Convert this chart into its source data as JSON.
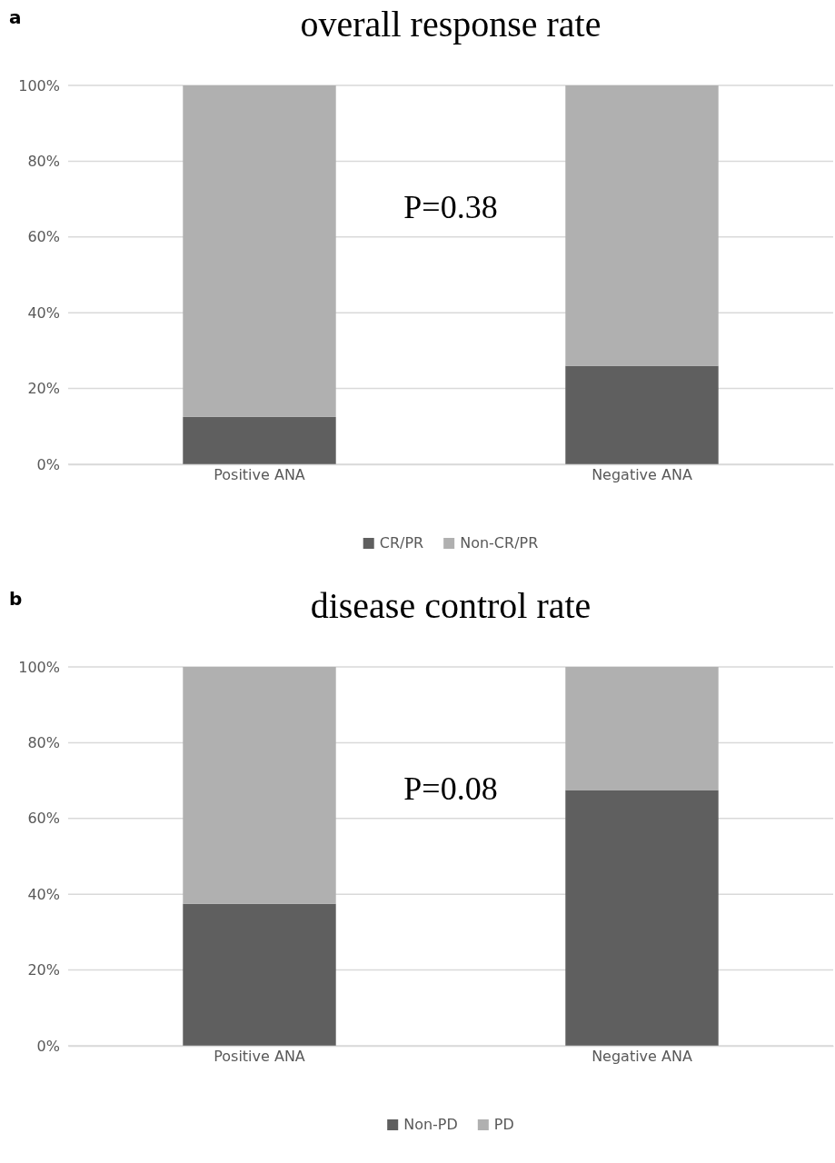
{
  "chart_data": [
    {
      "type": "bar",
      "title": "overall response rate",
      "categories": [
        "Positive ANA",
        "Negative ANA"
      ],
      "stacked": true,
      "series": [
        {
          "name": "CR/PR",
          "color": "#5f5f5f",
          "values": [
            12.5,
            26
          ]
        },
        {
          "name": "Non-CR/PR",
          "color": "#b0b0b0",
          "values": [
            87.5,
            74
          ]
        }
      ],
      "ylim": [
        0,
        100
      ],
      "yticks": [
        {
          "value": 0,
          "label": "0%"
        },
        {
          "value": 20,
          "label": "20%"
        },
        {
          "value": 40,
          "label": "40%"
        },
        {
          "value": 60,
          "label": "60%"
        },
        {
          "value": 80,
          "label": "80%"
        },
        {
          "value": 100,
          "label": "100%"
        }
      ],
      "grid": "y",
      "legend": "bottom",
      "annotations": [
        "a",
        "P=0.38"
      ]
    },
    {
      "type": "bar",
      "title": "disease control rate",
      "categories": [
        "Positive ANA",
        "Negative ANA"
      ],
      "stacked": true,
      "series": [
        {
          "name": "Non-PD",
          "color": "#5f5f5f",
          "values": [
            37.5,
            67.5
          ]
        },
        {
          "name": "PD",
          "color": "#b0b0b0",
          "values": [
            62.5,
            32.5
          ]
        }
      ],
      "ylim": [
        0,
        100
      ],
      "yticks": [
        {
          "value": 0,
          "label": "0%"
        },
        {
          "value": 20,
          "label": "20%"
        },
        {
          "value": 40,
          "label": "40%"
        },
        {
          "value": 60,
          "label": "60%"
        },
        {
          "value": 80,
          "label": "80%"
        },
        {
          "value": 100,
          "label": "100%"
        }
      ],
      "grid": "y",
      "legend": "bottom",
      "annotations": [
        "b",
        "P=0.08"
      ]
    }
  ]
}
